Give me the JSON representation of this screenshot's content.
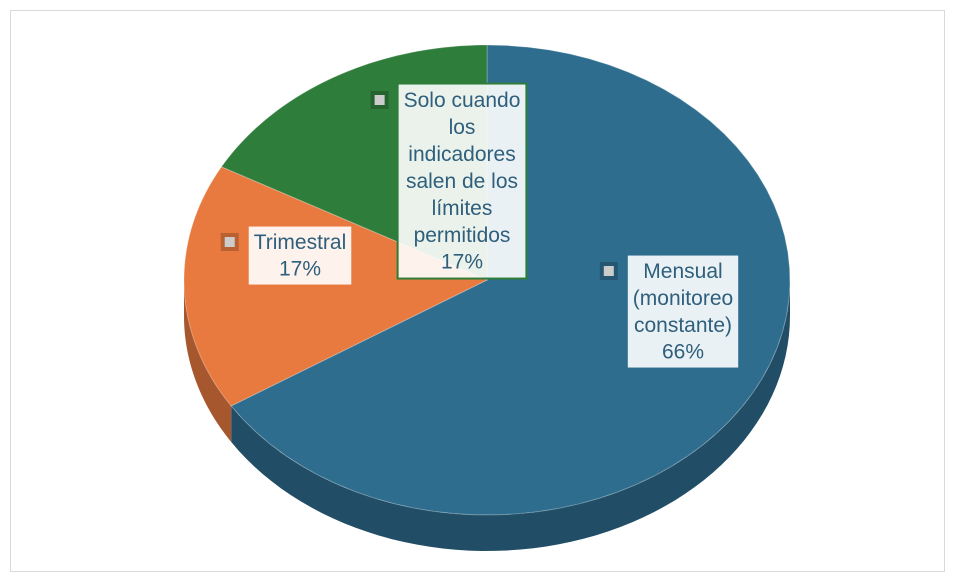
{
  "chart_data": {
    "type": "pie3d",
    "categories": [
      "Mensual (monitoreo constante)",
      "Trimestral",
      "Solo cuando los indicadores salen de los límites permitidos"
    ],
    "values": [
      66,
      17,
      17
    ],
    "value_labels": [
      "66%",
      "17%",
      "17%"
    ],
    "colors": [
      "#2e6d8e",
      "#e8793f",
      "#2f7d3b"
    ]
  }
}
